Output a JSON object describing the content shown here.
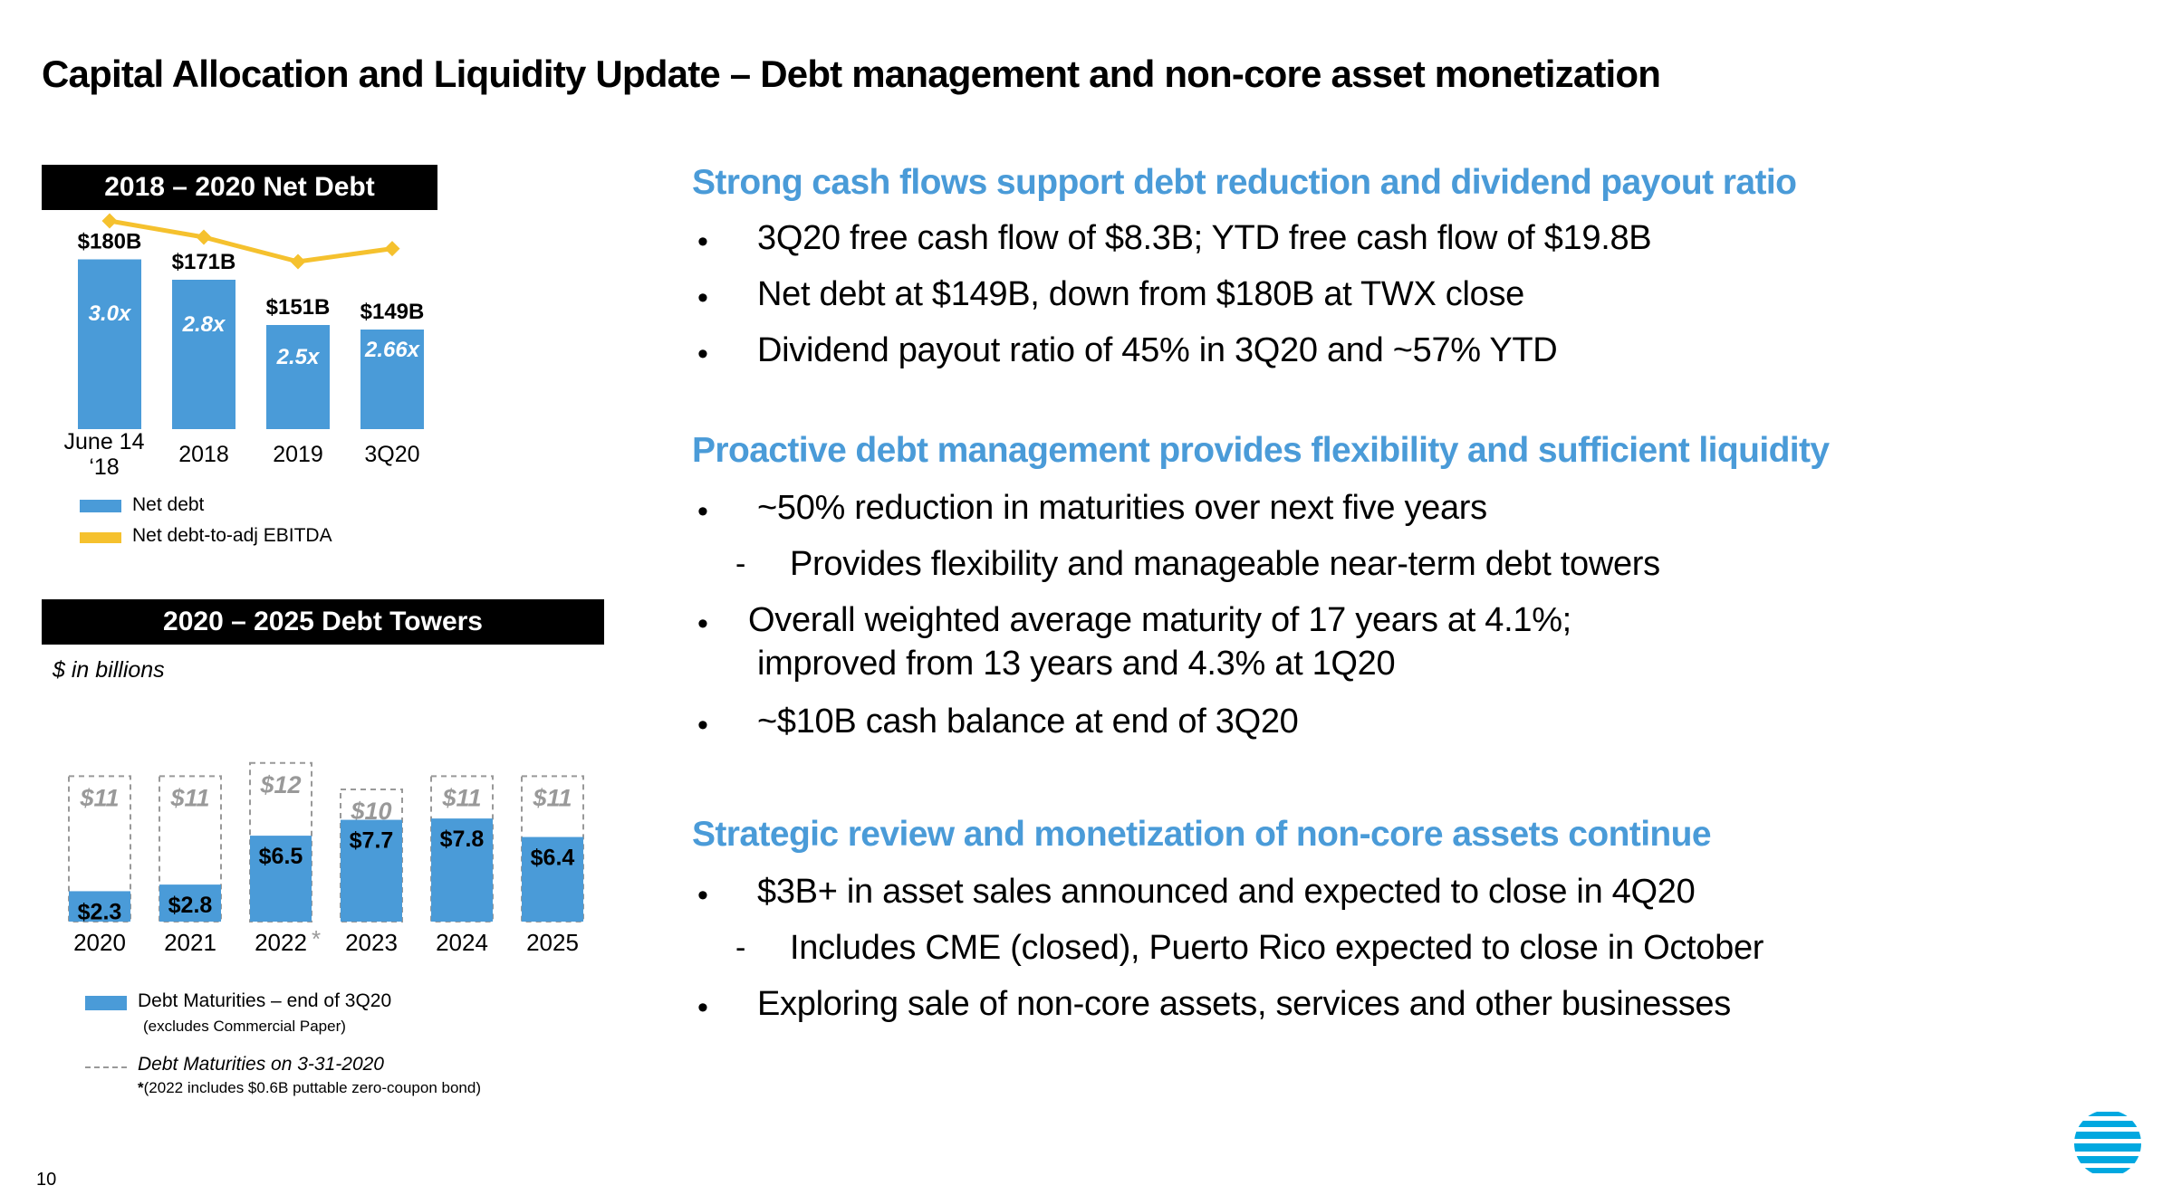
{
  "slide": {
    "title": "Capital Allocation and Liquidity Update – Debt management and non-core asset monetization",
    "page_number": "10"
  },
  "net_debt_panel": {
    "label": "2018 – 2020 Net Debt",
    "legend": {
      "net_debt": "Net debt",
      "ratio": "Net debt-to-adj EBITDA"
    },
    "colors": {
      "bar": "#4a9bd8",
      "line": "#f5c12e"
    }
  },
  "debt_towers_panel": {
    "label": "2020 – 2025 Debt Towers",
    "units_note": "$ in billions",
    "legend": {
      "maturities": "Debt Maturities – end of 3Q20",
      "maturities_note": "(excludes Commercial Paper)",
      "prior": "Debt Maturities on 3-31-2020",
      "footnote_star": "*",
      "footnote": "(2022 includes $0.6B puttable zero-coupon bond)"
    },
    "colors": {
      "bar": "#4a9bd8",
      "dashed": "#999999",
      "prior_label": "#999999"
    }
  },
  "chart_data": [
    {
      "type": "bar",
      "title": "2018 – 2020 Net Debt",
      "categories": [
        "June 14 ‘18",
        "2018",
        "2019",
        "3Q20"
      ],
      "category_lines": [
        [
          "June 14",
          "‘18"
        ],
        [
          "2018"
        ],
        [
          "2019"
        ],
        [
          "3Q20"
        ]
      ],
      "series": [
        {
          "name": "Net debt",
          "values": [
            180,
            171,
            151,
            149
          ],
          "labels": [
            "$180B",
            "$171B",
            "$151B",
            "$149B"
          ]
        },
        {
          "name": "Net debt-to-adj EBITDA",
          "type": "line",
          "values": [
            3.0,
            2.8,
            2.5,
            2.66
          ],
          "labels": [
            "3.0x",
            "2.8x",
            "2.5x",
            "2.66x"
          ]
        }
      ]
    },
    {
      "type": "bar",
      "title": "2020 – 2025 Debt Towers",
      "ylabel": "$ in billions",
      "categories": [
        "2020",
        "2021",
        "2022",
        "2023",
        "2024",
        "2025"
      ],
      "category_marks": [
        "",
        "",
        "*",
        "",
        "",
        ""
      ],
      "series": [
        {
          "name": "Debt Maturities – end of 3Q20",
          "values": [
            2.3,
            2.8,
            6.5,
            7.7,
            7.8,
            6.4
          ],
          "labels": [
            "$2.3",
            "$2.8",
            "$6.5",
            "$7.7",
            "$7.8",
            "$6.4"
          ]
        },
        {
          "name": "Debt Maturities on 3-31-2020",
          "values": [
            11,
            11,
            12,
            10,
            11,
            11
          ],
          "labels": [
            "$11",
            "$11",
            "$12",
            "$10",
            "$11",
            "$11"
          ]
        }
      ]
    }
  ],
  "sections": [
    {
      "heading": "Strong cash flows support debt reduction and dividend payout ratio",
      "items": [
        {
          "text": "3Q20 free cash flow of $8.3B; YTD free cash flow of $19.8B"
        },
        {
          "text": "Net debt at $149B, down from $180B at TWX close"
        },
        {
          "text": "Dividend payout ratio of 45% in 3Q20 and ~57% YTD"
        }
      ]
    },
    {
      "heading": "Proactive debt management provides flexibility and sufficient liquidity",
      "items": [
        {
          "text": "~50% reduction in maturities over next five years"
        },
        {
          "text": "Provides flexibility and manageable near-term debt towers"
        },
        {
          "text": "Overall weighted average maturity of 17 years at 4.1%;"
        },
        {
          "text": "improved from 13 years and 4.3% at 1Q20"
        },
        {
          "text": "~$10B cash balance at end of 3Q20"
        }
      ]
    },
    {
      "heading": "Strategic review and monetization of non-core assets continue",
      "items": [
        {
          "text": "$3B+ in asset sales announced and expected to close in 4Q20"
        },
        {
          "text": "Includes CME (closed), Puerto Rico expected to close in October"
        },
        {
          "text": "Exploring sale of non-core assets, services and other businesses"
        }
      ]
    }
  ],
  "bullet_glyph": "•",
  "sub_glyph": "-",
  "logo": {
    "icon": "att-globe-icon",
    "color": "#00a8e0"
  }
}
